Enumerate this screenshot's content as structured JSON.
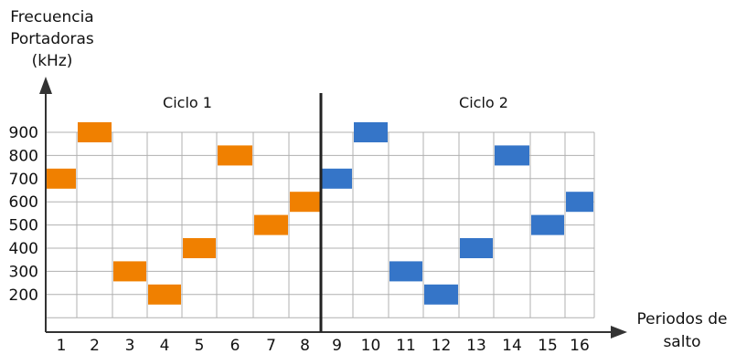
{
  "y_axis": {
    "label_lines": [
      "Frecuencia",
      "Portadoras",
      "(kHz)"
    ],
    "ticks": [
      "900",
      "800",
      "700",
      "600",
      "500",
      "400",
      "300",
      "200"
    ]
  },
  "x_axis": {
    "label_lines": [
      "Periodos de",
      "salto"
    ],
    "ticks": [
      "1",
      "2",
      "3",
      "4",
      "5",
      "6",
      "7",
      "8",
      "9",
      "10",
      "11",
      "12",
      "13",
      "14",
      "15",
      "16"
    ]
  },
  "cycles": [
    "Ciclo 1",
    "Ciclo 2"
  ],
  "colors": {
    "cycle1": "#f08000",
    "cycle2": "#3575c8",
    "grid": "#b0b0b0"
  },
  "hops": {
    "cycle1": [
      700,
      900,
      300,
      200,
      400,
      800,
      500,
      600
    ],
    "cycle2": [
      700,
      900,
      300,
      200,
      400,
      800,
      500,
      600
    ]
  }
}
